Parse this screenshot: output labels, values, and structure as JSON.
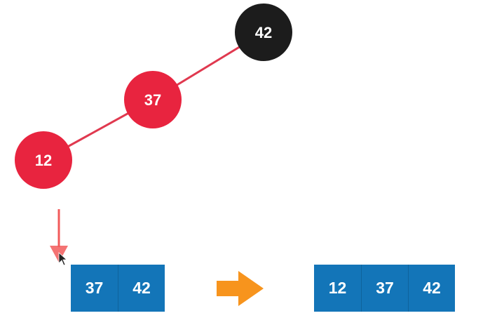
{
  "tree": {
    "nodes": [
      {
        "id": "root",
        "value": "42",
        "color": "black"
      },
      {
        "id": "mid",
        "value": "37",
        "color": "red"
      },
      {
        "id": "leaf",
        "value": "12",
        "color": "red"
      }
    ],
    "edges": [
      {
        "from": "root",
        "to": "mid"
      },
      {
        "from": "mid",
        "to": "leaf"
      }
    ]
  },
  "colors": {
    "red_node": "#e8243f",
    "black_node": "#1c1c1c",
    "edge": "#e0394f",
    "array_cell": "#1375b8",
    "down_arrow": "#f25a5a",
    "right_arrow": "#f7941d"
  },
  "array_before": {
    "cells": [
      "37",
      "42"
    ]
  },
  "array_after": {
    "cells": [
      "12",
      "37",
      "42"
    ]
  },
  "icons": {
    "insert_arrow": "arrow-down-icon",
    "transform_arrow": "arrow-right-icon",
    "cursor": "mouse-cursor-icon"
  }
}
